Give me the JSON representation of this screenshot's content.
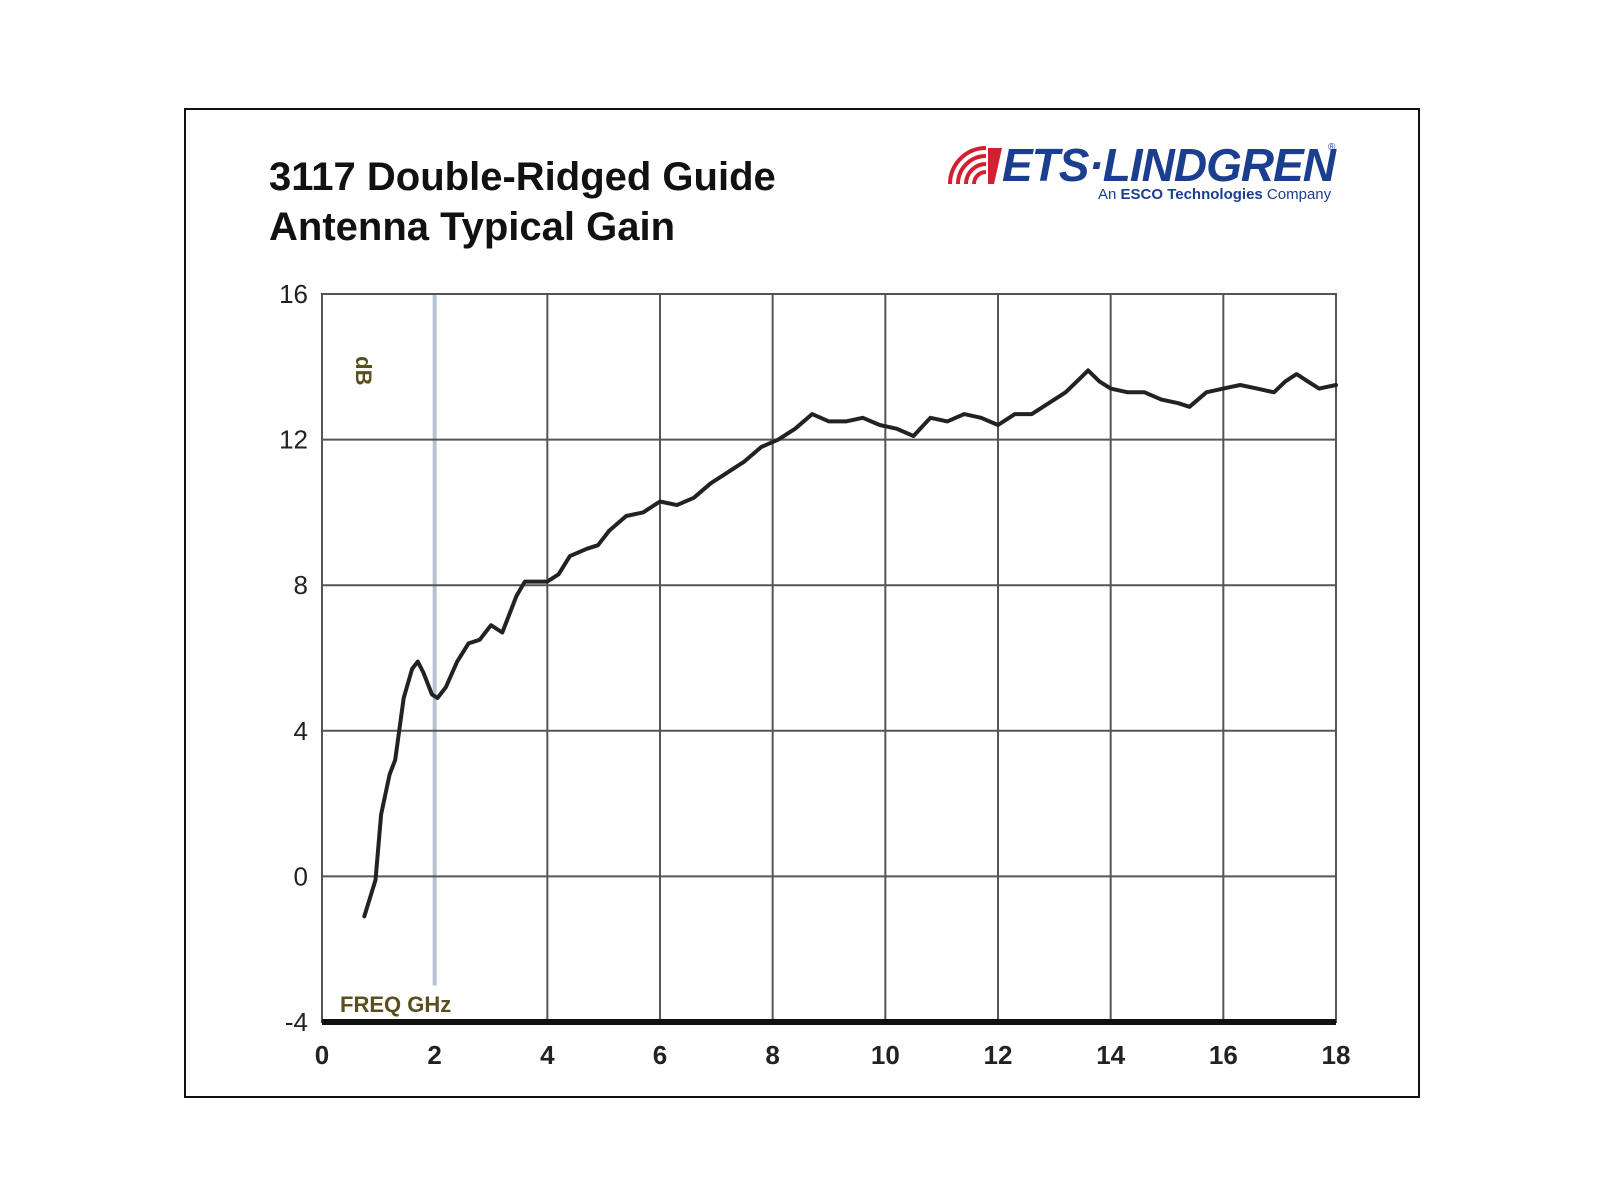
{
  "title_line1": "3117 Double-Ridged Guide",
  "title_line2": "Antenna Typical Gain",
  "logo": {
    "name": "ETS·LINDGREN",
    "registered": "®",
    "tagline_prefix": "An ",
    "tagline_bold": "ESCO Technologies",
    "tagline_suffix": " Company",
    "color_red": "#d1202f",
    "color_blue": "#1b3e8f"
  },
  "chart_data": {
    "type": "line",
    "xlabel": "FREQ GHz",
    "ylabel": "dB",
    "xlim": [
      0,
      18
    ],
    "ylim": [
      -4,
      16
    ],
    "x_ticks": [
      "0",
      "2",
      "4",
      "6",
      "8",
      "10",
      "12",
      "14",
      "16",
      "18"
    ],
    "y_ticks": [
      "16",
      "12",
      "8",
      "4",
      "0",
      "-4"
    ],
    "grid": true,
    "series": [
      {
        "line_color": "#222222",
        "points": [
          [
            0.75,
            -1.1
          ],
          [
            0.85,
            -0.6
          ],
          [
            0.95,
            -0.1
          ],
          [
            1.05,
            1.7
          ],
          [
            1.2,
            2.8
          ],
          [
            1.3,
            3.2
          ],
          [
            1.45,
            4.9
          ],
          [
            1.6,
            5.7
          ],
          [
            1.7,
            5.9
          ],
          [
            1.8,
            5.6
          ],
          [
            1.95,
            5.0
          ],
          [
            2.05,
            4.9
          ],
          [
            2.2,
            5.2
          ],
          [
            2.4,
            5.9
          ],
          [
            2.6,
            6.4
          ],
          [
            2.8,
            6.5
          ],
          [
            3.0,
            6.9
          ],
          [
            3.2,
            6.7
          ],
          [
            3.45,
            7.7
          ],
          [
            3.6,
            8.1
          ],
          [
            3.8,
            8.1
          ],
          [
            4.0,
            8.1
          ],
          [
            4.2,
            8.3
          ],
          [
            4.4,
            8.8
          ],
          [
            4.7,
            9.0
          ],
          [
            4.9,
            9.1
          ],
          [
            5.1,
            9.5
          ],
          [
            5.4,
            9.9
          ],
          [
            5.7,
            10.0
          ],
          [
            6.0,
            10.3
          ],
          [
            6.3,
            10.2
          ],
          [
            6.6,
            10.4
          ],
          [
            6.9,
            10.8
          ],
          [
            7.2,
            11.1
          ],
          [
            7.5,
            11.4
          ],
          [
            7.8,
            11.8
          ],
          [
            8.1,
            12.0
          ],
          [
            8.4,
            12.3
          ],
          [
            8.7,
            12.7
          ],
          [
            9.0,
            12.5
          ],
          [
            9.3,
            12.5
          ],
          [
            9.6,
            12.6
          ],
          [
            9.9,
            12.4
          ],
          [
            10.2,
            12.3
          ],
          [
            10.5,
            12.1
          ],
          [
            10.8,
            12.6
          ],
          [
            11.1,
            12.5
          ],
          [
            11.4,
            12.7
          ],
          [
            11.7,
            12.6
          ],
          [
            12.0,
            12.4
          ],
          [
            12.3,
            12.7
          ],
          [
            12.6,
            12.7
          ],
          [
            12.9,
            13.0
          ],
          [
            13.2,
            13.3
          ],
          [
            13.4,
            13.6
          ],
          [
            13.6,
            13.9
          ],
          [
            13.8,
            13.6
          ],
          [
            14.0,
            13.4
          ],
          [
            14.3,
            13.3
          ],
          [
            14.6,
            13.3
          ],
          [
            14.9,
            13.1
          ],
          [
            15.2,
            13.0
          ],
          [
            15.4,
            12.9
          ],
          [
            15.7,
            13.3
          ],
          [
            16.0,
            13.4
          ],
          [
            16.3,
            13.5
          ],
          [
            16.6,
            13.4
          ],
          [
            16.9,
            13.3
          ],
          [
            17.1,
            13.6
          ],
          [
            17.3,
            13.8
          ],
          [
            17.5,
            13.6
          ],
          [
            17.7,
            13.4
          ],
          [
            18.0,
            13.5
          ]
        ]
      }
    ]
  }
}
